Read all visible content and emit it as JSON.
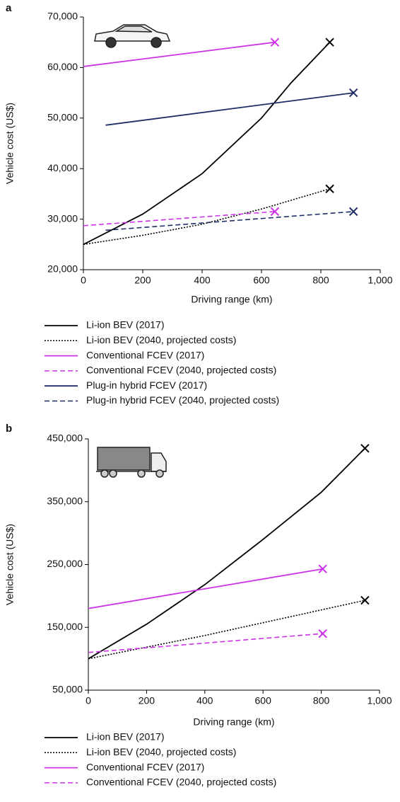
{
  "chart_data": [
    {
      "type": "line",
      "panel": "a",
      "xlabel": "Driving range (km)",
      "ylabel": "Vehicle cost (US$)",
      "xlim": [
        0,
        1000
      ],
      "xticks": [
        0,
        200,
        400,
        600,
        800,
        {
          "value": 1000,
          "label": "1,000"
        }
      ],
      "ylim": [
        20000,
        70000
      ],
      "yticks": [
        {
          "value": 20000,
          "label": "20,000"
        },
        {
          "value": 30000,
          "label": "30,000"
        },
        {
          "value": 40000,
          "label": "40,000"
        },
        {
          "value": 50000,
          "label": "50,000"
        },
        {
          "value": 60000,
          "label": "60,000"
        },
        {
          "value": 70000,
          "label": "70,000"
        }
      ],
      "series": [
        {
          "name": "Li-ion BEV (2017)",
          "color": "#000000",
          "style": "solid",
          "x": [
            0,
            200,
            400,
            600,
            700,
            830
          ],
          "values": [
            25000,
            31000,
            39000,
            50000,
            57000,
            65000
          ]
        },
        {
          "name": "Li-ion BEV (2040, projected costs)",
          "color": "#000000",
          "style": "dotted",
          "x": [
            0,
            200,
            400,
            600,
            830
          ],
          "values": [
            25000,
            26800,
            29000,
            32000,
            36000
          ]
        },
        {
          "name": "Conventional FCEV (2017)",
          "color": "#cc33e6",
          "style": "solid",
          "x": [
            0,
            645
          ],
          "values": [
            60200,
            65000
          ]
        },
        {
          "name": "Conventional FCEV (2040, projected costs)",
          "color": "#cc33e6",
          "style": "dashed",
          "x": [
            0,
            645
          ],
          "values": [
            28700,
            31500
          ]
        },
        {
          "name": "Plug-in hybrid FCEV (2017)",
          "color": "#1f2f66",
          "style": "solid",
          "x": [
            75,
            910
          ],
          "values": [
            48600,
            55000
          ]
        },
        {
          "name": "Plug-in hybrid FCEV (2040, projected costs)",
          "color": "#1f2f66",
          "style": "dashed",
          "x": [
            75,
            910
          ],
          "values": [
            27800,
            31500
          ]
        }
      ]
    },
    {
      "type": "line",
      "panel": "b",
      "xlabel": "Driving range (km)",
      "ylabel": "Vehicle cost (US$)",
      "xlim": [
        0,
        1000
      ],
      "xticks": [
        0,
        200,
        400,
        600,
        800,
        {
          "value": 1000,
          "label": "1,000"
        }
      ],
      "ylim": [
        50000,
        450000
      ],
      "yticks": [
        {
          "value": 50000,
          "label": "50,000"
        },
        {
          "value": 150000,
          "label": "150,000"
        },
        {
          "value": 250000,
          "label": "250,000"
        },
        {
          "value": 350000,
          "label": "350,000"
        },
        {
          "value": 450000,
          "label": "450,000"
        }
      ],
      "series": [
        {
          "name": "Li-ion BEV (2017)",
          "color": "#000000",
          "style": "solid",
          "x": [
            0,
            200,
            400,
            600,
            800,
            950
          ],
          "values": [
            100000,
            155000,
            218000,
            290000,
            365000,
            435000
          ]
        },
        {
          "name": "Li-ion BEV (2040, projected costs)",
          "color": "#000000",
          "style": "dotted",
          "x": [
            0,
            400,
            950
          ],
          "values": [
            100000,
            137000,
            193000
          ]
        },
        {
          "name": "Conventional FCEV (2017)",
          "color": "#cc33e6",
          "style": "solid",
          "x": [
            0,
            805
          ],
          "values": [
            180000,
            243000
          ]
        },
        {
          "name": "Conventional FCEV (2040, projected costs)",
          "color": "#cc33e6",
          "style": "dashed",
          "x": [
            0,
            805
          ],
          "values": [
            110000,
            140000
          ]
        }
      ]
    }
  ]
}
